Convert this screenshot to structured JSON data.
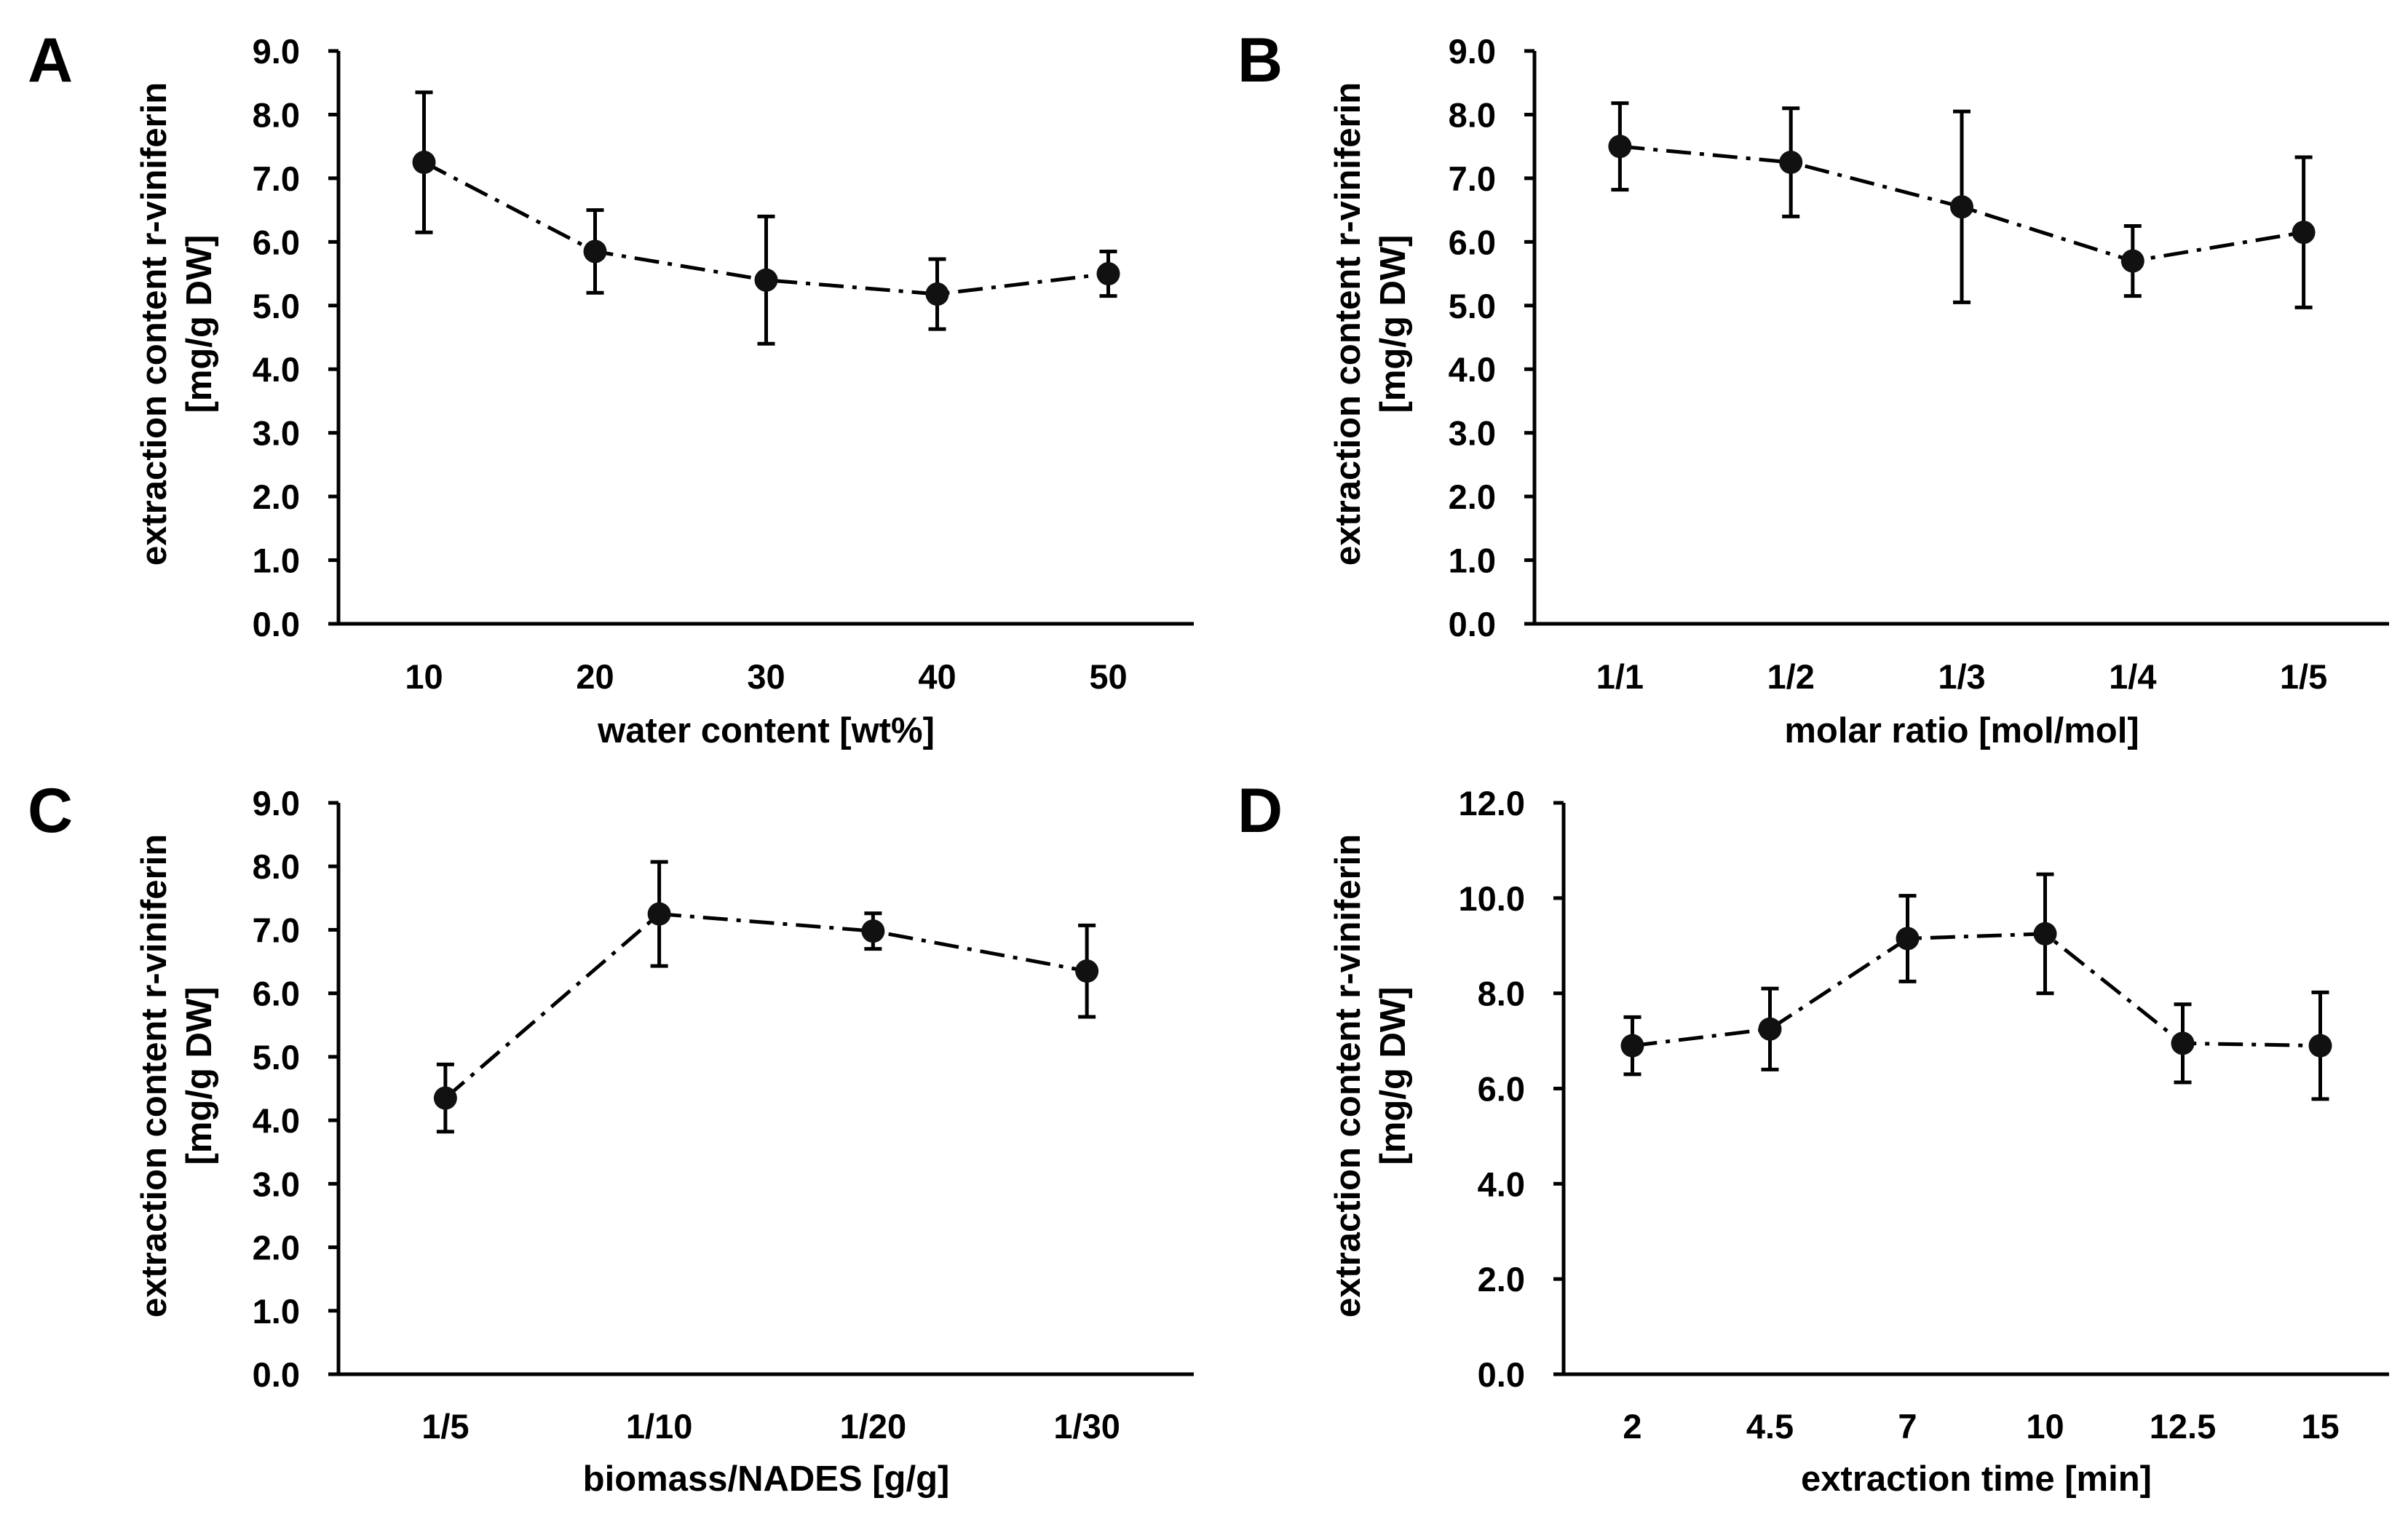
{
  "chart_data": [
    {
      "panel": "A",
      "type": "line",
      "title": "",
      "xlabel": "water content [wt%]",
      "ylabel_lines": [
        "extraction content r-viniferin",
        "[mg/g DW]"
      ],
      "categories": [
        "10",
        "20",
        "30",
        "40",
        "50"
      ],
      "series": [
        {
          "name": "r-viniferin",
          "values": [
            7.25,
            5.85,
            5.4,
            5.18,
            5.5
          ],
          "errors": [
            1.1,
            0.65,
            1.0,
            0.55,
            0.35
          ]
        }
      ],
      "ylim": [
        0,
        9
      ],
      "yticks": [
        "0.0",
        "1.0",
        "2.0",
        "3.0",
        "4.0",
        "5.0",
        "6.0",
        "7.0",
        "8.0",
        "9.0"
      ],
      "grid": false
    },
    {
      "panel": "B",
      "type": "line",
      "title": "",
      "xlabel": "molar ratio [mol/mol]",
      "ylabel_lines": [
        "extraction content r-viniferin",
        "[mg/g DW]"
      ],
      "categories": [
        "1/1",
        "1/2",
        "1/3",
        "1/4",
        "1/5"
      ],
      "series": [
        {
          "name": "r-viniferin",
          "values": [
            7.5,
            7.25,
            6.55,
            5.7,
            6.15
          ],
          "errors": [
            0.68,
            0.85,
            1.5,
            0.55,
            1.18
          ]
        }
      ],
      "ylim": [
        0,
        9
      ],
      "yticks": [
        "0.0",
        "1.0",
        "2.0",
        "3.0",
        "4.0",
        "5.0",
        "6.0",
        "7.0",
        "8.0",
        "9.0"
      ],
      "grid": false
    },
    {
      "panel": "C",
      "type": "line",
      "title": "",
      "xlabel": "biomass/NADES [g/g]",
      "ylabel_lines": [
        "extraction content r-viniferin",
        "[mg/g DW]"
      ],
      "categories": [
        "1/5",
        "1/10",
        "1/20",
        "1/30"
      ],
      "series": [
        {
          "name": "r-viniferin",
          "values": [
            4.35,
            7.25,
            6.98,
            6.35
          ],
          "errors": [
            0.53,
            0.82,
            0.28,
            0.72
          ]
        }
      ],
      "ylim": [
        0,
        9
      ],
      "yticks": [
        "0.0",
        "1.0",
        "2.0",
        "3.0",
        "4.0",
        "5.0",
        "6.0",
        "7.0",
        "8.0",
        "9.0"
      ],
      "grid": false
    },
    {
      "panel": "D",
      "type": "line",
      "title": "",
      "xlabel": "extraction time [min]",
      "ylabel_lines": [
        "extraction content r-viniferin",
        "[mg/g DW]"
      ],
      "categories": [
        "2",
        "4.5",
        "7",
        "10",
        "12.5",
        "15"
      ],
      "series": [
        {
          "name": "r-viniferin",
          "values": [
            6.9,
            7.25,
            9.15,
            9.25,
            6.95,
            6.9
          ],
          "errors": [
            0.6,
            0.85,
            0.9,
            1.25,
            0.82,
            1.12
          ]
        }
      ],
      "ylim": [
        0,
        12
      ],
      "yticks": [
        "0.0",
        "2.0",
        "4.0",
        "6.0",
        "8.0",
        "10.0",
        "12.0"
      ],
      "grid": false
    }
  ],
  "colors": {
    "line": "#000000",
    "marker": "#111111",
    "background": "#ffffff"
  }
}
